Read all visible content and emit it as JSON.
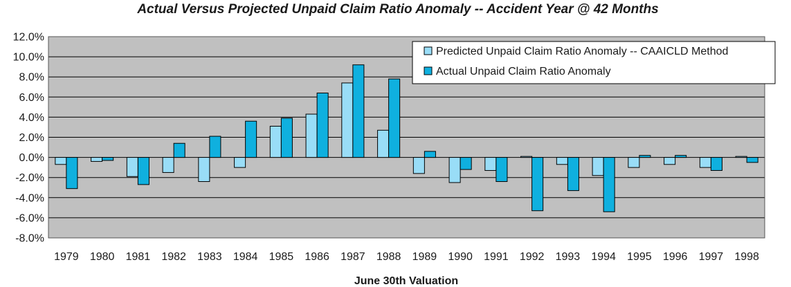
{
  "chart_data": {
    "type": "bar",
    "title": "Actual Versus Projected Unpaid Claim Ratio Anomaly -- Accident Year @ 42 Months",
    "xlabel": "June 30th Valuation",
    "ylabel": "",
    "ylim": [
      -8.0,
      12.0
    ],
    "yticks": [
      -8.0,
      -6.0,
      -4.0,
      -2.0,
      0.0,
      2.0,
      4.0,
      6.0,
      8.0,
      10.0,
      12.0
    ],
    "ytick_labels": [
      "-8.0%",
      "-6.0%",
      "-4.0%",
      "-2.0%",
      "0.0%",
      "2.0%",
      "4.0%",
      "6.0%",
      "8.0%",
      "10.0%",
      "12.0%"
    ],
    "y_unit": "%",
    "grid": true,
    "legend_position": "top-right",
    "background": "#c0c0c0",
    "categories": [
      "1979",
      "1980",
      "1981",
      "1982",
      "1983",
      "1984",
      "1985",
      "1986",
      "1987",
      "1988",
      "1989",
      "1990",
      "1991",
      "1992",
      "1993",
      "1994",
      "1995",
      "1996",
      "1997",
      "1998"
    ],
    "series": [
      {
        "name": "Predicted Unpaid Claim Ratio Anomaly -- CAAICLD Method",
        "color": "#99ddf7",
        "values": [
          -0.7,
          -0.4,
          -1.9,
          -1.5,
          -2.4,
          -1.0,
          3.1,
          4.3,
          7.4,
          2.7,
          -1.6,
          -2.5,
          -1.3,
          0.1,
          -0.7,
          -1.8,
          -1.0,
          -0.7,
          -1.0,
          0.1
        ]
      },
      {
        "name": "Actual Unpaid Claim Ratio Anomaly",
        "color": "#0fb0df",
        "values": [
          -3.1,
          -0.3,
          -2.7,
          1.4,
          2.1,
          3.6,
          3.9,
          6.4,
          9.2,
          7.8,
          0.6,
          -1.2,
          -2.4,
          -5.3,
          -3.3,
          -5.4,
          0.2,
          0.2,
          -1.3,
          -0.5
        ]
      }
    ]
  }
}
